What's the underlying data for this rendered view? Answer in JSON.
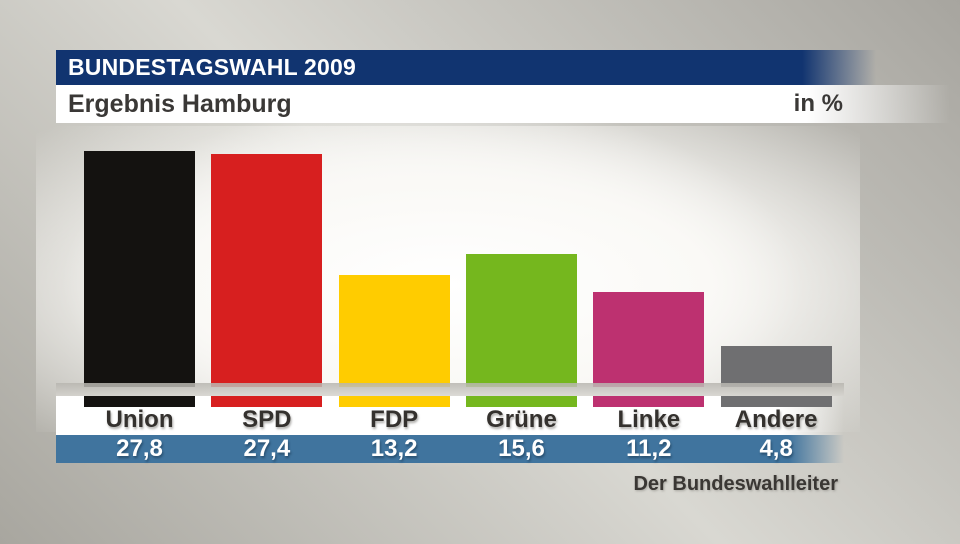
{
  "header": {
    "title": "BUNDESTAGSWAHL 2009",
    "subtitle": "Ergebnis Hamburg",
    "unit": "in %"
  },
  "footer": {
    "source": "Der Bundeswahlleiter"
  },
  "chart_data": {
    "type": "bar",
    "title": "BUNDESTAGSWAHL 2009 – Ergebnis Hamburg",
    "ylabel": "in %",
    "categories": [
      "Union",
      "SPD",
      "FDP",
      "Grüne",
      "Linke",
      "Andere"
    ],
    "values": [
      27.8,
      27.4,
      13.2,
      15.6,
      11.2,
      4.8
    ],
    "value_labels": [
      "27,8",
      "27,4",
      "13,2",
      "15,6",
      "11,2",
      "4,8"
    ],
    "bar_colors": [
      "#141210",
      "#d71f1f",
      "#ffcc00",
      "#75b71e",
      "#bd3170",
      "#6f6f71"
    ],
    "ylim": [
      0,
      30
    ],
    "grid": false,
    "legend_position": "none"
  },
  "colors": {
    "banner_blue": "#113470",
    "values_band_blue": "#40749e",
    "baseline_gray": "#bcbab4",
    "label_text": "#34312e",
    "value_text": "#ffffff"
  }
}
